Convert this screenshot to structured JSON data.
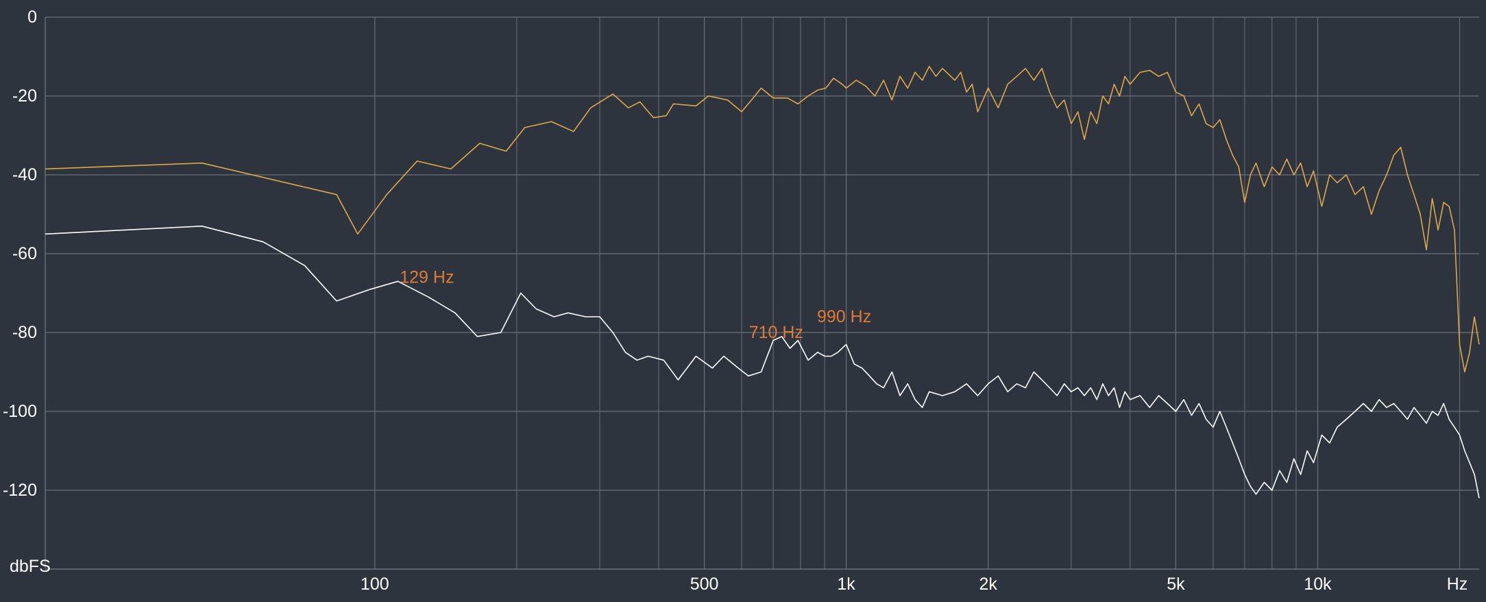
{
  "chart_data": {
    "type": "line",
    "x_scale": "log",
    "xlim": [
      20,
      22000
    ],
    "ylim": [
      -140,
      0
    ],
    "grid": true,
    "y_unit_label": "dbFS",
    "x_unit_label": "Hz",
    "y_ticks": [
      0,
      -20,
      -40,
      -60,
      -80,
      -100,
      -120
    ],
    "x_ticks": [
      {
        "value": 100,
        "label": "100"
      },
      {
        "value": 500,
        "label": "500"
      },
      {
        "value": 1000,
        "label": "1k"
      },
      {
        "value": 2000,
        "label": "2k"
      },
      {
        "value": 5000,
        "label": "5k"
      },
      {
        "value": 10000,
        "label": "10k"
      }
    ],
    "x_minor_grid": [
      200,
      300,
      400,
      600,
      700,
      800,
      900,
      3000,
      4000,
      6000,
      7000,
      8000,
      9000,
      20000
    ],
    "colors": {
      "background": "#2e343d",
      "grid": "#6a7079",
      "series_1": "#e0a84a",
      "series_2": "#ffffff",
      "annotation": "#e07a35"
    },
    "series": [
      {
        "color": "#e0a84a",
        "points": [
          [
            20,
            -38.5
          ],
          [
            43,
            -37
          ],
          [
            83,
            -45
          ],
          [
            92,
            -55
          ],
          [
            106,
            -45
          ],
          [
            123,
            -36.5
          ],
          [
            145,
            -38.5
          ],
          [
            167,
            -32
          ],
          [
            190,
            -34
          ],
          [
            208,
            -28
          ],
          [
            237,
            -26.5
          ],
          [
            264,
            -29
          ],
          [
            287,
            -23
          ],
          [
            320,
            -19.5
          ],
          [
            345,
            -23
          ],
          [
            365,
            -21.5
          ],
          [
            390,
            -25.5
          ],
          [
            415,
            -25
          ],
          [
            430,
            -22
          ],
          [
            480,
            -22.5
          ],
          [
            510,
            -20
          ],
          [
            560,
            -21
          ],
          [
            600,
            -24
          ],
          [
            640,
            -20
          ],
          [
            660,
            -18
          ],
          [
            700,
            -20.5
          ],
          [
            750,
            -20.5
          ],
          [
            790,
            -22
          ],
          [
            830,
            -20
          ],
          [
            870,
            -18.5
          ],
          [
            905,
            -18
          ],
          [
            940,
            -15.5
          ],
          [
            980,
            -17
          ],
          [
            1000,
            -18
          ],
          [
            1050,
            -16
          ],
          [
            1100,
            -17.5
          ],
          [
            1150,
            -20
          ],
          [
            1200,
            -16
          ],
          [
            1250,
            -21
          ],
          [
            1300,
            -15
          ],
          [
            1350,
            -18
          ],
          [
            1400,
            -14
          ],
          [
            1450,
            -16
          ],
          [
            1500,
            -12.5
          ],
          [
            1550,
            -15
          ],
          [
            1600,
            -13
          ],
          [
            1700,
            -16
          ],
          [
            1750,
            -14
          ],
          [
            1800,
            -19
          ],
          [
            1850,
            -17
          ],
          [
            1900,
            -24
          ],
          [
            1950,
            -21
          ],
          [
            2000,
            -18
          ],
          [
            2100,
            -23
          ],
          [
            2200,
            -17
          ],
          [
            2300,
            -15
          ],
          [
            2400,
            -13
          ],
          [
            2500,
            -16
          ],
          [
            2600,
            -13
          ],
          [
            2700,
            -19
          ],
          [
            2800,
            -23
          ],
          [
            2900,
            -21
          ],
          [
            3000,
            -27
          ],
          [
            3100,
            -24
          ],
          [
            3200,
            -31
          ],
          [
            3300,
            -24
          ],
          [
            3400,
            -27
          ],
          [
            3500,
            -20
          ],
          [
            3600,
            -22
          ],
          [
            3700,
            -17
          ],
          [
            3800,
            -20
          ],
          [
            3900,
            -15
          ],
          [
            4000,
            -17
          ],
          [
            4200,
            -14
          ],
          [
            4400,
            -13.5
          ],
          [
            4600,
            -15
          ],
          [
            4800,
            -14
          ],
          [
            5000,
            -19
          ],
          [
            5200,
            -20
          ],
          [
            5400,
            -25
          ],
          [
            5600,
            -22
          ],
          [
            5800,
            -27
          ],
          [
            6000,
            -28
          ],
          [
            6200,
            -26
          ],
          [
            6400,
            -31
          ],
          [
            6600,
            -35
          ],
          [
            6800,
            -38
          ],
          [
            7000,
            -47
          ],
          [
            7200,
            -40
          ],
          [
            7400,
            -37
          ],
          [
            7700,
            -43
          ],
          [
            8000,
            -38
          ],
          [
            8300,
            -40
          ],
          [
            8600,
            -36
          ],
          [
            8900,
            -40
          ],
          [
            9200,
            -37
          ],
          [
            9500,
            -43
          ],
          [
            9800,
            -39
          ],
          [
            10200,
            -48
          ],
          [
            10600,
            -40
          ],
          [
            11000,
            -42
          ],
          [
            11500,
            -40
          ],
          [
            12000,
            -45
          ],
          [
            12500,
            -43
          ],
          [
            13000,
            -50
          ],
          [
            13500,
            -44
          ],
          [
            14000,
            -40
          ],
          [
            14500,
            -35
          ],
          [
            15000,
            -33
          ],
          [
            15500,
            -40
          ],
          [
            16000,
            -45
          ],
          [
            16500,
            -50
          ],
          [
            17000,
            -59
          ],
          [
            17500,
            -46
          ],
          [
            18000,
            -54
          ],
          [
            18500,
            -47
          ],
          [
            19000,
            -48
          ],
          [
            19500,
            -54
          ],
          [
            20000,
            -83
          ],
          [
            20500,
            -90
          ],
          [
            21000,
            -85
          ],
          [
            21500,
            -76
          ],
          [
            22000,
            -83
          ]
        ]
      },
      {
        "color": "#ffffff",
        "points": [
          [
            20,
            -55
          ],
          [
            43,
            -53
          ],
          [
            58,
            -57
          ],
          [
            71,
            -63
          ],
          [
            83,
            -72
          ],
          [
            98,
            -69
          ],
          [
            112,
            -67
          ],
          [
            130,
            -71
          ],
          [
            148,
            -75
          ],
          [
            165,
            -81
          ],
          [
            185,
            -80
          ],
          [
            204,
            -70
          ],
          [
            220,
            -74
          ],
          [
            240,
            -76
          ],
          [
            257,
            -75
          ],
          [
            280,
            -76
          ],
          [
            300,
            -76
          ],
          [
            320,
            -80
          ],
          [
            340,
            -85
          ],
          [
            360,
            -87
          ],
          [
            380,
            -86
          ],
          [
            410,
            -87
          ],
          [
            440,
            -92
          ],
          [
            480,
            -86
          ],
          [
            520,
            -89
          ],
          [
            550,
            -86
          ],
          [
            590,
            -89
          ],
          [
            620,
            -91
          ],
          [
            660,
            -90
          ],
          [
            700,
            -82
          ],
          [
            730,
            -81
          ],
          [
            760,
            -84
          ],
          [
            790,
            -82
          ],
          [
            830,
            -87
          ],
          [
            870,
            -85
          ],
          [
            900,
            -86
          ],
          [
            930,
            -86
          ],
          [
            960,
            -85
          ],
          [
            1000,
            -83
          ],
          [
            1040,
            -88
          ],
          [
            1080,
            -89
          ],
          [
            1120,
            -91
          ],
          [
            1160,
            -93
          ],
          [
            1200,
            -94
          ],
          [
            1250,
            -90
          ],
          [
            1300,
            -96
          ],
          [
            1350,
            -93
          ],
          [
            1400,
            -97
          ],
          [
            1450,
            -99
          ],
          [
            1500,
            -95
          ],
          [
            1600,
            -96
          ],
          [
            1700,
            -95
          ],
          [
            1800,
            -93
          ],
          [
            1900,
            -96
          ],
          [
            2000,
            -93
          ],
          [
            2100,
            -91
          ],
          [
            2200,
            -95
          ],
          [
            2300,
            -93
          ],
          [
            2400,
            -94
          ],
          [
            2500,
            -90
          ],
          [
            2600,
            -92
          ],
          [
            2700,
            -94
          ],
          [
            2800,
            -96
          ],
          [
            2900,
            -93
          ],
          [
            3000,
            -95
          ],
          [
            3100,
            -94
          ],
          [
            3200,
            -96
          ],
          [
            3300,
            -94
          ],
          [
            3400,
            -97
          ],
          [
            3500,
            -93
          ],
          [
            3600,
            -96
          ],
          [
            3700,
            -94
          ],
          [
            3800,
            -99
          ],
          [
            3900,
            -95
          ],
          [
            4000,
            -97
          ],
          [
            4200,
            -96
          ],
          [
            4400,
            -99
          ],
          [
            4600,
            -96
          ],
          [
            4800,
            -98
          ],
          [
            5000,
            -100
          ],
          [
            5200,
            -97
          ],
          [
            5400,
            -101
          ],
          [
            5600,
            -98
          ],
          [
            5800,
            -102
          ],
          [
            6000,
            -104
          ],
          [
            6200,
            -100
          ],
          [
            6400,
            -104
          ],
          [
            6600,
            -108
          ],
          [
            6800,
            -112
          ],
          [
            7000,
            -116
          ],
          [
            7200,
            -119
          ],
          [
            7400,
            -121
          ],
          [
            7700,
            -118
          ],
          [
            8000,
            -120
          ],
          [
            8300,
            -115
          ],
          [
            8600,
            -118
          ],
          [
            8900,
            -112
          ],
          [
            9200,
            -116
          ],
          [
            9500,
            -110
          ],
          [
            9800,
            -113
          ],
          [
            10200,
            -106
          ],
          [
            10600,
            -108
          ],
          [
            11000,
            -104
          ],
          [
            11500,
            -102
          ],
          [
            12000,
            -100
          ],
          [
            12500,
            -98
          ],
          [
            13000,
            -100
          ],
          [
            13500,
            -97
          ],
          [
            14000,
            -99
          ],
          [
            14500,
            -98
          ],
          [
            15000,
            -100
          ],
          [
            15500,
            -102
          ],
          [
            16000,
            -99
          ],
          [
            16500,
            -101
          ],
          [
            17000,
            -103
          ],
          [
            17500,
            -100
          ],
          [
            18000,
            -101
          ],
          [
            18500,
            -98
          ],
          [
            19000,
            -102
          ],
          [
            19500,
            -104
          ],
          [
            20000,
            -106
          ],
          [
            20500,
            -110
          ],
          [
            21000,
            -113
          ],
          [
            21500,
            -116
          ],
          [
            22000,
            -122
          ]
        ]
      }
    ],
    "annotations": [
      {
        "label": "129 Hz",
        "freq": 129,
        "db": -66
      },
      {
        "label": "710 Hz",
        "freq": 710,
        "db": -80
      },
      {
        "label": "990 Hz",
        "freq": 990,
        "db": -76
      }
    ]
  }
}
